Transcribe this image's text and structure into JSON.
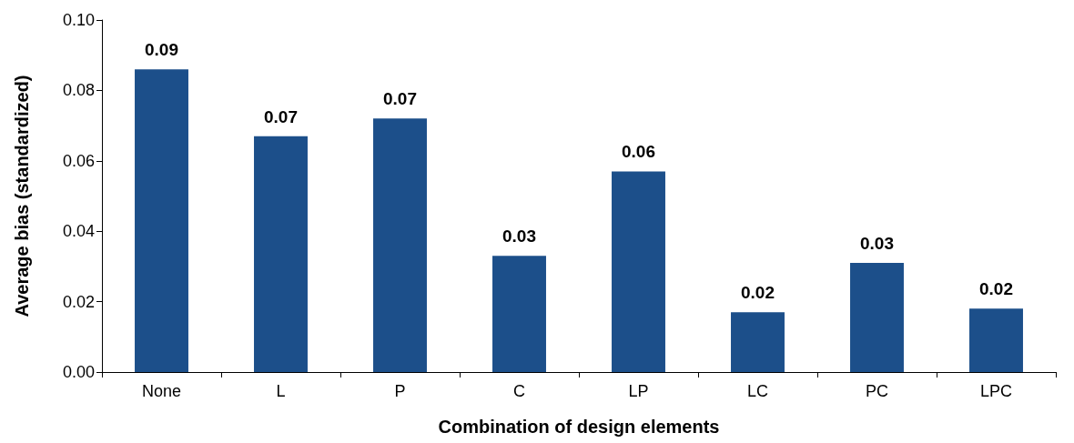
{
  "chart_data": {
    "type": "bar",
    "xlabel": "Combination of design elements",
    "ylabel": "Average bias (standardized)",
    "categories": [
      "None",
      "L",
      "P",
      "C",
      "LP",
      "LC",
      "PC",
      "LPC"
    ],
    "values": [
      0.086,
      0.067,
      0.072,
      0.033,
      0.057,
      0.017,
      0.031,
      0.018
    ],
    "value_labels": [
      "0.09",
      "0.07",
      "0.07",
      "0.03",
      "0.06",
      "0.02",
      "0.03",
      "0.02"
    ],
    "color": "#1c4f8a",
    "ylim": [
      0,
      0.1
    ],
    "yticks": [
      {
        "value": 0,
        "label": "0.00"
      },
      0.02,
      0.04,
      0.06,
      0.08,
      {
        "value": 0.1,
        "label": "0.10"
      }
    ],
    "grid": false
  }
}
